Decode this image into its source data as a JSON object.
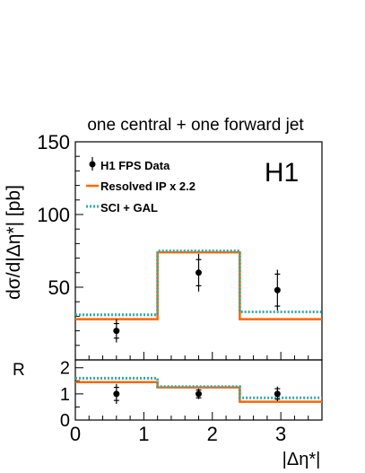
{
  "chart_data": [
    {
      "type": "step",
      "title": "one central + one forward jet",
      "ylabel": "dσ/d|Δη*| [pb]",
      "experiment_label": "H1",
      "xlim": [
        0,
        3.6
      ],
      "ylim": [
        0,
        150
      ],
      "yticks": [
        50,
        100,
        150
      ],
      "bin_edges": [
        0,
        1.2,
        2.4,
        3.6
      ],
      "data": {
        "name": "H1 FPS Data",
        "x": [
          0.6,
          1.8,
          2.95
        ],
        "y": [
          20,
          60,
          48
        ],
        "stat_err": [
          5,
          9,
          11
        ],
        "tot_err": [
          8,
          13,
          14
        ]
      },
      "series": [
        {
          "name": "Resolved IP x 2.2",
          "values": [
            28,
            74,
            28
          ],
          "color": "#ff6600",
          "style": "solid"
        },
        {
          "name": "SCI + GAL",
          "values": [
            31,
            75,
            33
          ],
          "color": "#33aaaa",
          "style": "dotted"
        }
      ],
      "legend_position": "top-left"
    },
    {
      "type": "step",
      "ylabel": "R",
      "xlabel": "|Δη*|",
      "xlim": [
        0,
        3.6
      ],
      "ylim": [
        0,
        2.3
      ],
      "xticks": [
        0,
        1,
        2,
        3
      ],
      "yticks": [
        0,
        1,
        2
      ],
      "bin_edges": [
        0,
        1.2,
        2.4,
        3.6
      ],
      "data": {
        "x": [
          0.6,
          1.8,
          2.95
        ],
        "y": [
          1.0,
          1.0,
          1.0
        ],
        "stat_err": [
          0.25,
          0.15,
          0.2
        ],
        "tot_err": [
          0.38,
          0.2,
          0.28
        ]
      },
      "series": [
        {
          "name": "Resolved IP x 2.2",
          "values": [
            1.45,
            1.25,
            0.7
          ],
          "color": "#ff6600",
          "style": "solid"
        },
        {
          "name": "SCI + GAL",
          "values": [
            1.6,
            1.28,
            0.85
          ],
          "color": "#33aaaa",
          "style": "dotted"
        }
      ]
    }
  ]
}
